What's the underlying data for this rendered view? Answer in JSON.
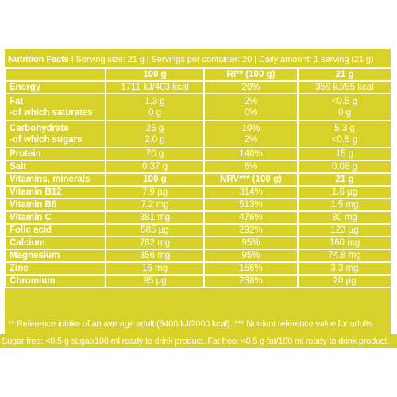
{
  "title": {
    "bold": "Nutrition Facts",
    "rest": " I Serving size: 21 g | Servings per container: 20 | Daily amount: 1 serving (21 g)"
  },
  "header": {
    "label": "",
    "col1": "100 g",
    "col2": "RI** (100 g)",
    "col3": "21 g"
  },
  "rows": [
    {
      "label": "Energy",
      "sublabel": "",
      "v1": "1711 kJ/403 kcal",
      "v2": "20%",
      "v3": "359 kJ/85 kcal"
    },
    {
      "label": "Fat",
      "sublabel": "-of which saturates",
      "v1": "1.3 g",
      "v1b": "0 g",
      "v2": "2%",
      "v2b": "0%",
      "v3": "<0.5 g",
      "v3b": "0 g"
    },
    {
      "label": "Carbohydrate",
      "sublabel": "-of which sugars",
      "v1": "25 g",
      "v1b": "2.0 g",
      "v2": "10%",
      "v2b": "2%",
      "v3": "5.3 g",
      "v3b": "<0.5 g"
    },
    {
      "label": "Protein",
      "sublabel": "",
      "v1": "70 g",
      "v2": "140%",
      "v3": "15 g"
    },
    {
      "label": "Salt",
      "sublabel": "",
      "v1": "0.37 g",
      "v2": "6%",
      "v3": "0.08 g"
    }
  ],
  "vitamins_header": {
    "label": "Vitamins, minerals",
    "col1": "100 g",
    "col2": "NRV*** (100 g)",
    "col3": "21 g"
  },
  "vitamins": [
    {
      "label": "Vitamin B12",
      "v1": "7.9 µg",
      "v2": "314%",
      "v3": "1.6 µg"
    },
    {
      "label": "Vitamin B6",
      "v1": "7.2 mg",
      "v2": "513%",
      "v3": "1.5 mg"
    },
    {
      "label": "Vitamin C",
      "v1": "381 mg",
      "v2": "476%",
      "v3": "80 mg"
    },
    {
      "label": "Folic acid",
      "v1": "585 µg",
      "v2": "292%",
      "v3": "123 µg"
    },
    {
      "label": "Calcium",
      "v1": "762 mg",
      "v2": "95%",
      "v3": "160 mg"
    },
    {
      "label": "Magnesium",
      "v1": "356 mg",
      "v2": "95%",
      "v3": "74.8 mg"
    },
    {
      "label": "Zinc",
      "v1": "16 mg",
      "v2": "156%",
      "v3": "3.3 mg"
    },
    {
      "label": "Chromium",
      "v1": "95 µg",
      "v2": "238%",
      "v3": "20 µg"
    }
  ],
  "footnote": "** Reference intake of an average adult (8400 kJ/2000 kcal). *** Nutrient reference value for adults.",
  "sugar_note": "Sugar free: <0.5 g sugar/100 ml ready to drink product. Fat free: <0.5 g fat/100 ml ready to drink product.",
  "colors": {
    "panel": "#d7d12a",
    "text": "#ffffff"
  }
}
